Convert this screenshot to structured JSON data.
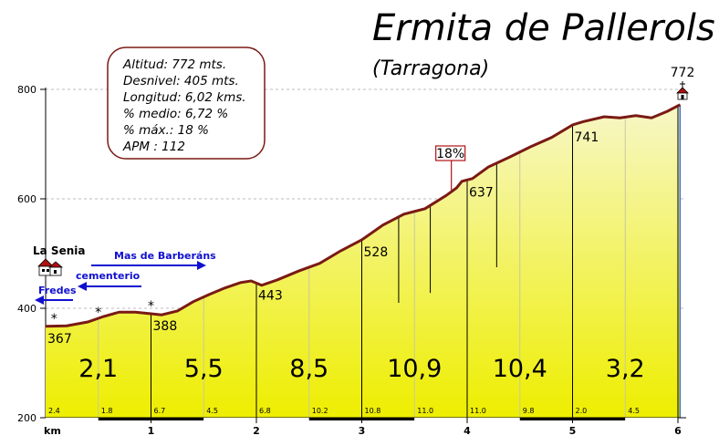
{
  "chart_data": {
    "type": "area",
    "title": "Ermita de Pallerols",
    "subtitle": "(Tarragona)",
    "xlabel": "km",
    "ylabel": "",
    "xlim": [
      0,
      6.02
    ],
    "ylim": [
      200,
      820
    ],
    "x_ticks": [
      "1",
      "2",
      "3",
      "4",
      "5",
      "6"
    ],
    "y_ticks": [
      "200",
      "400",
      "600",
      "800"
    ],
    "grid": true,
    "stats": [
      "Altitud: 772 mts.",
      "Desnivel: 405 mts.",
      "Longitud: 6,02 kms.",
      "% medio: 6,72 %",
      "% máx.: 18 %",
      "APM : 112"
    ],
    "profile": {
      "x": [
        0,
        0.2,
        0.4,
        0.55,
        0.7,
        0.85,
        1.0,
        1.1,
        1.25,
        1.4,
        1.55,
        1.7,
        1.85,
        1.95,
        2.05,
        2.2,
        2.4,
        2.6,
        2.8,
        3.0,
        3.2,
        3.4,
        3.6,
        3.8,
        3.9,
        3.95,
        4.05,
        4.2,
        4.4,
        4.6,
        4.8,
        5.0,
        5.1,
        5.3,
        5.45,
        5.6,
        5.75,
        5.9,
        6.02
      ],
      "y": [
        367,
        368,
        375,
        385,
        393,
        393,
        390,
        388,
        395,
        412,
        425,
        437,
        447,
        450,
        442,
        452,
        468,
        482,
        505,
        525,
        552,
        572,
        582,
        606,
        620,
        632,
        637,
        658,
        676,
        695,
        712,
        735,
        741,
        750,
        748,
        752,
        748,
        760,
        772
      ]
    },
    "segments": [
      {
        "from": 0,
        "to": 1,
        "gradient": "2,1",
        "start_alt": "367",
        "sub": [
          "2.4",
          "1.8"
        ]
      },
      {
        "from": 1,
        "to": 2,
        "gradient": "5,5",
        "start_alt": "388",
        "sub": [
          "6.7",
          "4.5"
        ]
      },
      {
        "from": 2,
        "to": 3,
        "gradient": "8,5",
        "start_alt": "443",
        "sub": [
          "6.8",
          "10.2"
        ]
      },
      {
        "from": 3,
        "to": 4,
        "gradient": "10,9",
        "start_alt": "528",
        "sub": [
          "10.8",
          "11.0"
        ]
      },
      {
        "from": 4,
        "to": 5,
        "gradient": "10,4",
        "start_alt": "637",
        "sub": [
          "11.0",
          "9.8"
        ]
      },
      {
        "from": 5,
        "to": 6,
        "gradient": "3,2",
        "start_alt": "741",
        "sub": [
          "2.0",
          "4.5"
        ]
      }
    ],
    "annotations": {
      "summit": {
        "x": 6.02,
        "label": "772"
      },
      "max_gradient": {
        "x": 3.85,
        "y": 616,
        "label": "18%"
      },
      "start_place": "La Senia",
      "routes": [
        {
          "label": "Mas de Barberáns",
          "direction": "right"
        },
        {
          "label": "cementerio",
          "direction": "left"
        },
        {
          "label": "Fredes",
          "direction": "left"
        }
      ],
      "asterisks": [
        {
          "x": 0.08,
          "y": 367
        },
        {
          "x": 0.5,
          "y": 378
        },
        {
          "x": 1.0,
          "y": 390
        }
      ]
    }
  },
  "colors": {
    "fill_top": "#f5f5b8",
    "fill_bottom": "#f0f000",
    "profile_line": "#7a1a14",
    "route_blue": "#1010d0"
  }
}
